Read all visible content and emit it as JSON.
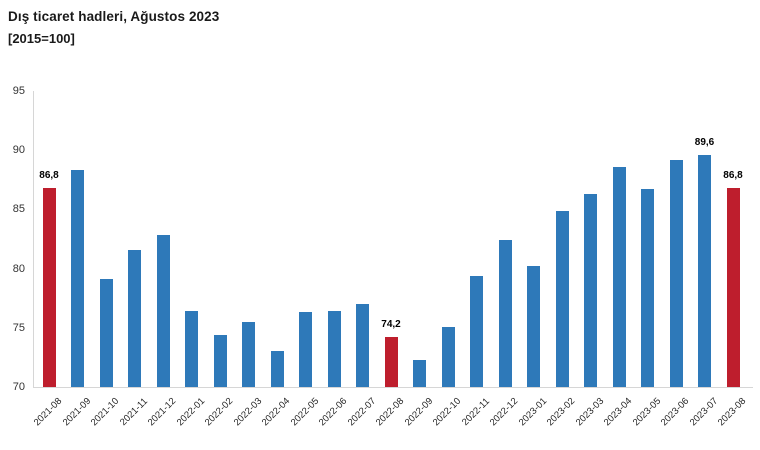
{
  "title": "Dış ticaret hadleri, Ağustos 2023",
  "subtitle": "[2015=100]",
  "chart_data": {
    "type": "bar",
    "title": "Dış ticaret hadleri, Ağustos 2023",
    "subtitle": "[2015=100]",
    "categories": [
      "2021-08",
      "2021-09",
      "2021-10",
      "2021-11",
      "2021-12",
      "2022-01",
      "2022-02",
      "2022-03",
      "2022-04",
      "2022-05",
      "2022-06",
      "2022-07",
      "2022-08",
      "2022-09",
      "2022-10",
      "2022-11",
      "2022-12",
      "2023-01",
      "2023-02",
      "2023-03",
      "2023-04",
      "2023-05",
      "2023-06",
      "2023-07",
      "2023-08"
    ],
    "values": [
      86.8,
      88.3,
      79.1,
      81.6,
      82.8,
      76.4,
      74.4,
      75.5,
      73.0,
      76.3,
      76.4,
      77.0,
      74.2,
      72.3,
      75.1,
      79.4,
      82.4,
      80.2,
      84.9,
      86.3,
      88.6,
      86.7,
      89.2,
      89.6,
      86.8
    ],
    "highlighted_indices": [
      0,
      12,
      24
    ],
    "data_labels": {
      "0": "86,8",
      "12": "74,2",
      "23": "89,6",
      "24": "86,8"
    },
    "colors": {
      "bar": "#2E79B9",
      "highlight": "#BE1E2D"
    },
    "ylim": [
      70,
      95
    ],
    "yticks": [
      70,
      75,
      80,
      85,
      90,
      95
    ],
    "xlabel": "",
    "ylabel": "",
    "grid": false,
    "legend": null
  }
}
